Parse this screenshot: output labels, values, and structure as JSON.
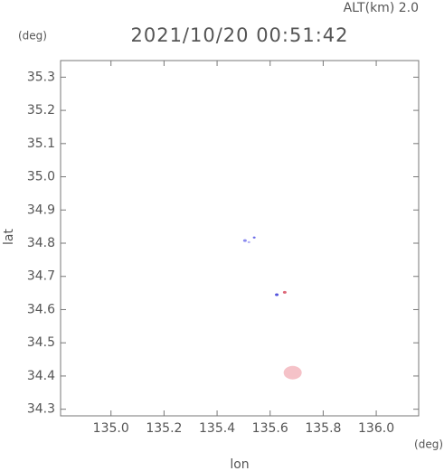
{
  "chart_data": {
    "type": "scatter",
    "title": "2021/10/20 00:51:42",
    "altitude_label": "ALT(km) 2.0",
    "y_unit": "(deg)",
    "x_unit": "(deg)",
    "x_label": "lon",
    "y_label": "lat",
    "x": [
      135.505,
      135.52,
      135.54,
      135.625,
      135.655,
      135.685
    ],
    "y": [
      34.808,
      34.803,
      34.817,
      34.645,
      34.652,
      34.41
    ],
    "colors": [
      "#8a8af0",
      "#b0b0f5",
      "#6a6ae8",
      "#5555dd",
      "#dd6677",
      "#f5c2c8"
    ],
    "sizes": [
      2,
      1.5,
      1.5,
      2,
      2,
      10
    ],
    "xlim": [
      134.81,
      136.16
    ],
    "ylim": [
      34.28,
      35.35
    ],
    "xticks": [
      {
        "value": 135,
        "label": "135.0"
      },
      135.2,
      135.4,
      135.6,
      135.8,
      {
        "value": 136,
        "label": "136.0"
      }
    ],
    "yticks": [
      34.3,
      34.4,
      34.5,
      34.6,
      34.7,
      34.8,
      34.9,
      {
        "value": 35,
        "label": "35.0"
      },
      35.1,
      35.2,
      35.3
    ]
  }
}
